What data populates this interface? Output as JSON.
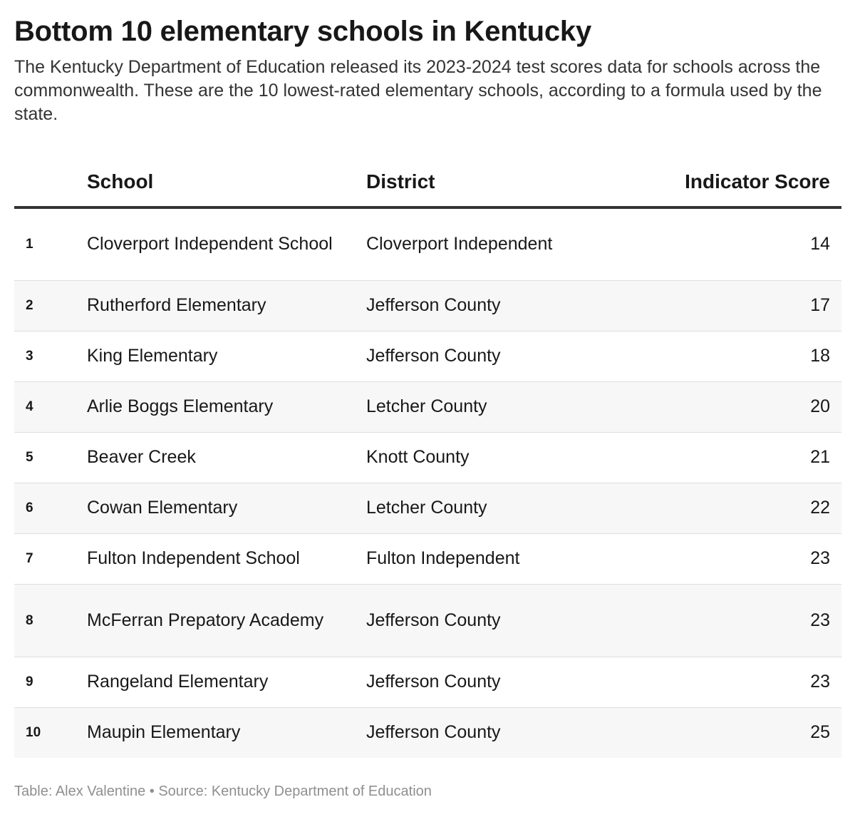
{
  "title": "Bottom 10 elementary schools in Kentucky",
  "description": "The Kentucky Department of Education released its 2023-2024 test scores data for schools across the commonwealth. These are the 10 lowest-rated elementary schools, according to a formula used by the state.",
  "chart_data": {
    "type": "table",
    "columns": [
      "",
      "School",
      "District",
      "Indicator Score"
    ],
    "rows": [
      {
        "rank": "1",
        "school": "Cloverport Independent School",
        "district": "Cloverport Independent",
        "score": "14"
      },
      {
        "rank": "2",
        "school": "Rutherford Elementary",
        "district": "Jefferson County",
        "score": "17"
      },
      {
        "rank": "3",
        "school": "King Elementary",
        "district": "Jefferson County",
        "score": "18"
      },
      {
        "rank": "4",
        "school": "Arlie Boggs Elementary",
        "district": "Letcher County",
        "score": "20"
      },
      {
        "rank": "5",
        "school": "Beaver Creek",
        "district": "Knott County",
        "score": "21"
      },
      {
        "rank": "6",
        "school": "Cowan Elementary",
        "district": "Letcher County",
        "score": "22"
      },
      {
        "rank": "7",
        "school": "Fulton Independent School",
        "district": "Fulton Independent",
        "score": "23"
      },
      {
        "rank": "8",
        "school": "McFerran Prepatory Academy",
        "district": "Jefferson County",
        "score": "23"
      },
      {
        "rank": "9",
        "school": "Rangeland Elementary",
        "district": "Jefferson County",
        "score": "23"
      },
      {
        "rank": "10",
        "school": "Maupin Elementary",
        "district": "Jefferson County",
        "score": "25"
      }
    ]
  },
  "footer": {
    "credit": "Table: Alex Valentine",
    "separator": "•",
    "source": "Source: Kentucky Department of Education"
  }
}
